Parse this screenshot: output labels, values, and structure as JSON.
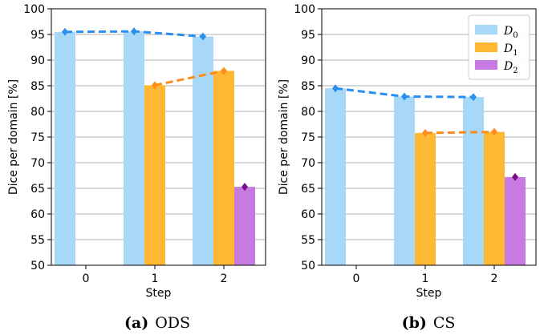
{
  "chart_data": [
    {
      "type": "bar",
      "caption_letter": "(a)",
      "caption_name": "ODS",
      "xlabel": "Step",
      "ylabel": "Dice per domain [%]",
      "ylim": [
        50,
        100
      ],
      "yticks": [
        "50",
        "55",
        "60",
        "65",
        "70",
        "75",
        "80",
        "85",
        "90",
        "95",
        "100"
      ],
      "categories": [
        "0",
        "1",
        "2"
      ],
      "grid": "horizontal",
      "legend": null,
      "series": [
        {
          "name": "D",
          "sub": "0",
          "color": "#a8d8f8",
          "line_color": "#2b8ff0",
          "marker_color": "#2b8ff0",
          "values": [
            95.5,
            95.6,
            94.6
          ]
        },
        {
          "name": "D",
          "sub": "1",
          "color": "#ffb833",
          "line_color": "#ff8c1a",
          "marker_color": "#ff8c1a",
          "values": [
            null,
            85.1,
            87.9
          ]
        },
        {
          "name": "D",
          "sub": "2",
          "color": "#c77be0",
          "line_color": "#7a0d8c",
          "marker_color": "#7a0d8c",
          "values": [
            null,
            null,
            65.3
          ]
        }
      ]
    },
    {
      "type": "bar",
      "caption_letter": "(b)",
      "caption_name": "CS",
      "xlabel": "Step",
      "ylabel": "Dice per domain [%]",
      "ylim": [
        50,
        100
      ],
      "yticks": [
        "50",
        "55",
        "60",
        "65",
        "70",
        "75",
        "80",
        "85",
        "90",
        "95",
        "100"
      ],
      "categories": [
        "0",
        "1",
        "2"
      ],
      "grid": "horizontal",
      "legend": "top-right",
      "series": [
        {
          "name": "D",
          "sub": "0",
          "color": "#a8d8f8",
          "line_color": "#2b8ff0",
          "marker_color": "#2b8ff0",
          "values": [
            84.5,
            82.9,
            82.8
          ]
        },
        {
          "name": "D",
          "sub": "1",
          "color": "#ffb833",
          "line_color": "#ff8c1a",
          "marker_color": "#ff8c1a",
          "values": [
            null,
            75.8,
            76.0
          ]
        },
        {
          "name": "D",
          "sub": "2",
          "color": "#c77be0",
          "line_color": "#7a0d8c",
          "marker_color": "#7a0d8c",
          "values": [
            null,
            null,
            67.2
          ]
        }
      ]
    }
  ]
}
